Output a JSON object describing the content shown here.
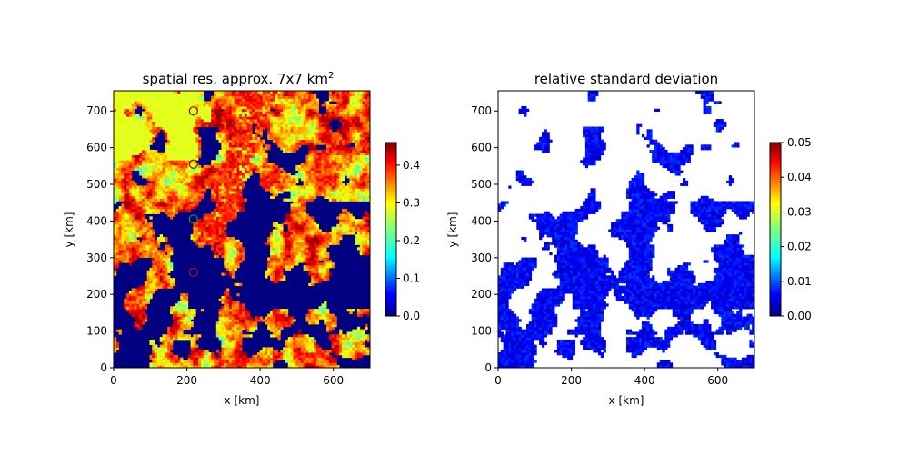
{
  "chart_data": [
    {
      "type": "heatmap",
      "title": "spatial res. approx. 7x7 km",
      "title_superscript": "2",
      "xlabel": "x [km]",
      "ylabel": "y [km]",
      "xlim": [
        0,
        700
      ],
      "ylim": [
        0,
        755
      ],
      "xticks": [
        "0",
        "200",
        "400",
        "600"
      ],
      "yticks": [
        "0",
        "100",
        "200",
        "300",
        "400",
        "500",
        "600",
        "700"
      ],
      "colormap": "jet",
      "colorbar": {
        "range": [
          0,
          0.46
        ],
        "ticks": [
          "0.0",
          "0.1",
          "0.2",
          "0.3",
          "0.4"
        ]
      },
      "grid_resolution_km": 7,
      "markers": [
        {
          "x": 218,
          "y": 700,
          "edge": "#8b1a1a"
        },
        {
          "x": 218,
          "y": 555,
          "edge": "#8b1a1a"
        },
        {
          "x": 218,
          "y": 405,
          "edge": "#2d8a2d"
        },
        {
          "x": 218,
          "y": 260,
          "edge": "#8b1a1a"
        }
      ]
    },
    {
      "type": "heatmap",
      "title": "relative standard deviation",
      "xlabel": "x [km]",
      "ylabel": "y [km]",
      "xlim": [
        0,
        700
      ],
      "ylim": [
        0,
        755
      ],
      "xticks": [
        "0",
        "200",
        "400",
        "600"
      ],
      "yticks": [
        "0",
        "100",
        "200",
        "300",
        "400",
        "500",
        "600",
        "700"
      ],
      "colormap": "jet",
      "colorbar": {
        "range": [
          0,
          0.05
        ],
        "ticks": [
          "0.00",
          "0.01",
          "0.02",
          "0.03",
          "0.04",
          "0.05"
        ]
      },
      "grid_resolution_km": 7
    }
  ]
}
